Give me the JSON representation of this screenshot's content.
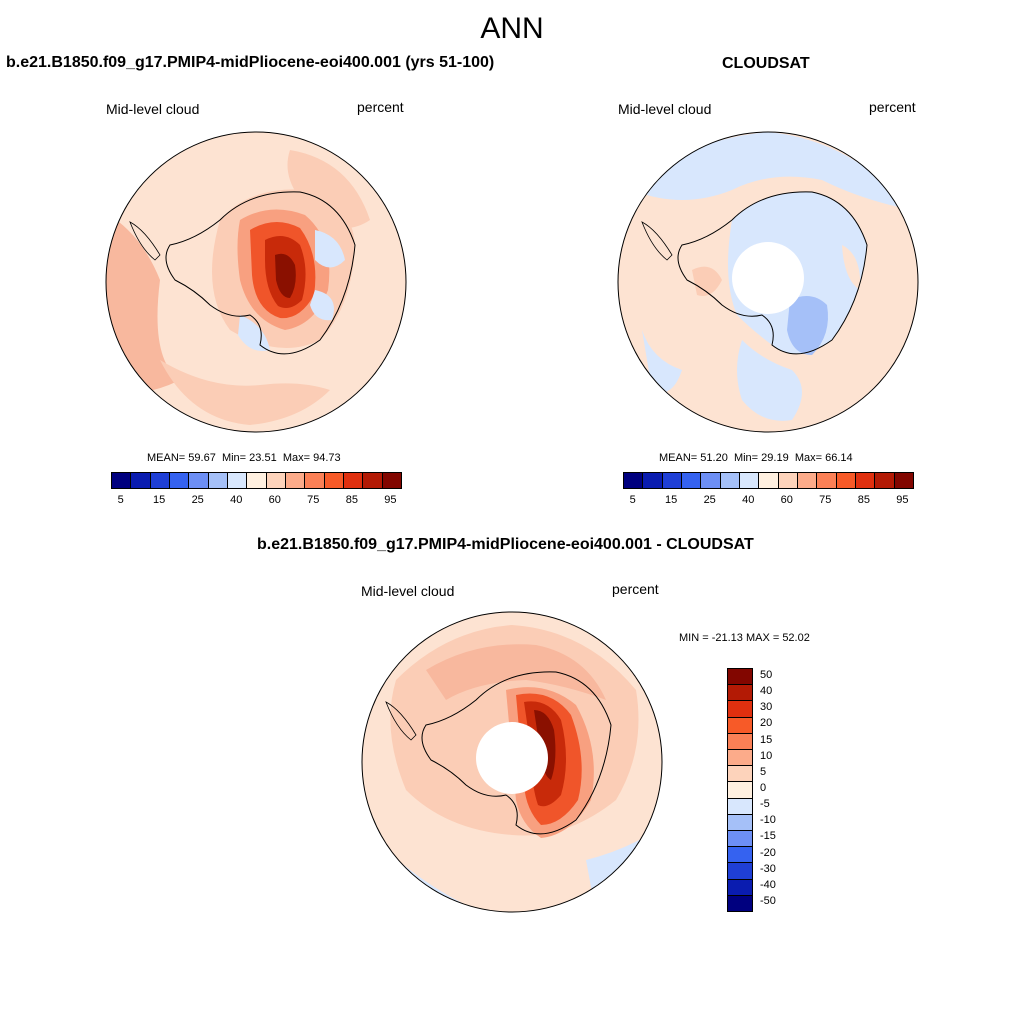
{
  "figure_title": "ANN",
  "panels": [
    {
      "title": "b.e21.B1850.f09_g17.PMIP4-midPliocene-eoi400.001 (yrs 51-100)",
      "variable": "Mid-level cloud",
      "units": "percent",
      "mean_label": "MEAN=",
      "mean": "59.67",
      "min_label": "Min=",
      "min": "23.51",
      "max_label": "Max=",
      "max": "94.73"
    },
    {
      "title": "CLOUDSAT",
      "variable": "Mid-level cloud",
      "units": "percent",
      "mean_label": "MEAN=",
      "mean": "51.20",
      "min_label": "Min=",
      "min": "29.19",
      "max_label": "Max=",
      "max": "66.14"
    },
    {
      "title": "b.e21.B1850.f09_g17.PMIP4-midPliocene-eoi400.001 - CLOUDSAT",
      "variable": "Mid-level cloud",
      "units": "percent",
      "minmax_text": "MIN = -21.13 MAX =  52.02"
    }
  ],
  "abs_colorbar": {
    "colors": [
      "#00007f",
      "#0a1cb0",
      "#1f3fd6",
      "#3562f0",
      "#6d8ff5",
      "#a5c0f8",
      "#d8e7fd",
      "#fff0e0",
      "#fdd3bb",
      "#fcab8a",
      "#fb8056",
      "#f75a28",
      "#e0300f",
      "#b31a05",
      "#820600"
    ],
    "tick_labels": [
      "5",
      "15",
      "25",
      "40",
      "60",
      "75",
      "85",
      "95"
    ]
  },
  "diff_colorbar": {
    "colors_top_to_bottom": [
      "#820600",
      "#b31a05",
      "#e0300f",
      "#f75a28",
      "#fb8056",
      "#fcab8a",
      "#fdd3bb",
      "#fff0e0",
      "#d8e7fd",
      "#a5c0f8",
      "#6d8ff5",
      "#3562f0",
      "#1f3fd6",
      "#0a1cb0",
      "#00007f"
    ],
    "tick_labels": [
      "50",
      "40",
      "30",
      "20",
      "15",
      "10",
      "5",
      "0",
      "-5",
      "-10",
      "-15",
      "-20",
      "-30",
      "-40",
      "-50"
    ]
  }
}
